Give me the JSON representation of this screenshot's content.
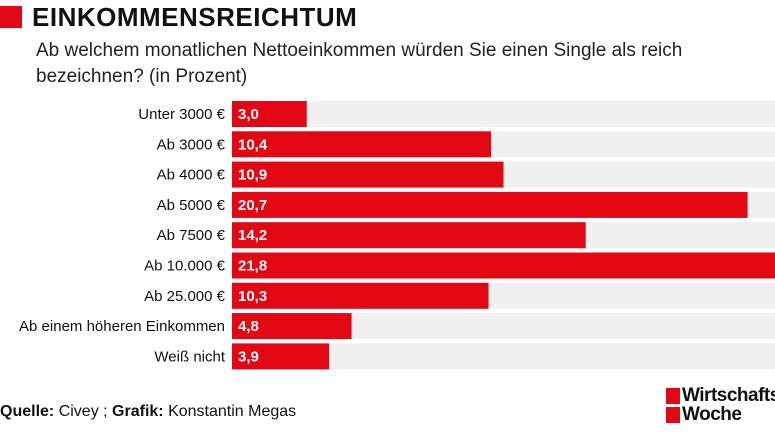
{
  "chart_data": {
    "type": "bar",
    "orientation": "horizontal",
    "title": "EINKOMMENSREICHTUM",
    "subtitle": "Ab welchem monatlichen Nettoeinkommen würden Sie einen Single als reich bezeichnen? (in Prozent)",
    "categories": [
      "Unter 3000 €",
      "Ab 3000 €",
      "Ab 4000 €",
      "Ab 5000 €",
      "Ab 7500 €",
      "Ab 10.000 €",
      "Ab 25.000 €",
      "Ab einem höheren Einkommen",
      "Weiß nicht"
    ],
    "values": [
      3.0,
      10.4,
      10.9,
      20.7,
      14.2,
      21.8,
      10.3,
      4.8,
      3.9
    ],
    "value_labels": [
      "3,0",
      "10,4",
      "10,9",
      "20,7",
      "14,2",
      "21,8",
      "10,3",
      "4,8",
      "3,9"
    ],
    "color": "#e30613",
    "track_color": "#f0f0f0",
    "source_label": "Quelle:",
    "source": "Civey ;",
    "credit_label": "Grafik:",
    "credit": "Konstantin Megas",
    "logo": [
      "Wirtschafts",
      "Woche"
    ]
  }
}
